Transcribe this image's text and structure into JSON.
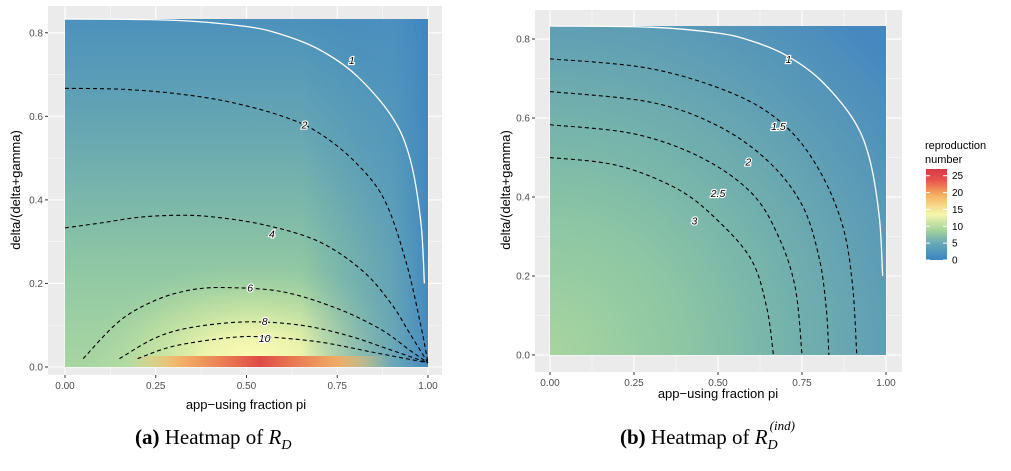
{
  "chart_data": [
    {
      "type": "heatmap",
      "panel": "a",
      "xlabel": "app−using fraction pi",
      "ylabel": "delta/(delta+gamma)",
      "xlim": [
        0,
        1
      ],
      "ylim": [
        0,
        0.833
      ],
      "x_ticks": [
        "0.00",
        "0.25",
        "0.50",
        "0.75",
        "1.00"
      ],
      "y_ticks": [
        "0.0",
        "0.2",
        "0.4",
        "0.6",
        "0.8"
      ],
      "contours": [
        {
          "level": "1",
          "style": "solid-white",
          "points": [
            [
              0.0,
              0.833
            ],
            [
              0.3,
              0.83
            ],
            [
              0.5,
              0.815
            ],
            [
              0.6,
              0.795
            ],
            [
              0.7,
              0.76
            ],
            [
              0.8,
              0.7
            ],
            [
              0.9,
              0.6
            ],
            [
              0.95,
              0.5
            ],
            [
              0.98,
              0.35
            ],
            [
              0.99,
              0.2
            ]
          ]
        },
        {
          "level": "2",
          "style": "dashed",
          "points": [
            [
              0.0,
              0.667
            ],
            [
              0.15,
              0.665
            ],
            [
              0.3,
              0.655
            ],
            [
              0.45,
              0.635
            ],
            [
              0.6,
              0.6
            ],
            [
              0.7,
              0.56
            ],
            [
              0.8,
              0.49
            ],
            [
              0.88,
              0.4
            ],
            [
              0.94,
              0.25
            ],
            [
              0.98,
              0.1
            ],
            [
              1.0,
              0.01
            ]
          ]
        },
        {
          "level": "4",
          "style": "dashed",
          "points": [
            [
              0.0,
              0.333
            ],
            [
              0.1,
              0.345
            ],
            [
              0.2,
              0.358
            ],
            [
              0.3,
              0.363
            ],
            [
              0.4,
              0.36
            ],
            [
              0.55,
              0.34
            ],
            [
              0.7,
              0.3
            ],
            [
              0.82,
              0.23
            ],
            [
              0.9,
              0.15
            ],
            [
              0.95,
              0.08
            ],
            [
              1.0,
              0.01
            ]
          ]
        },
        {
          "level": "6",
          "style": "dashed",
          "points": [
            [
              0.05,
              0.02
            ],
            [
              0.15,
              0.11
            ],
            [
              0.25,
              0.16
            ],
            [
              0.35,
              0.185
            ],
            [
              0.45,
              0.19
            ],
            [
              0.6,
              0.18
            ],
            [
              0.75,
              0.14
            ],
            [
              0.87,
              0.09
            ],
            [
              0.95,
              0.04
            ],
            [
              1.0,
              0.01
            ]
          ]
        },
        {
          "level": "8",
          "style": "dashed",
          "points": [
            [
              0.15,
              0.02
            ],
            [
              0.25,
              0.07
            ],
            [
              0.35,
              0.095
            ],
            [
              0.5,
              0.108
            ],
            [
              0.65,
              0.1
            ],
            [
              0.78,
              0.075
            ],
            [
              0.9,
              0.04
            ],
            [
              1.0,
              0.01
            ]
          ]
        },
        {
          "level": "10",
          "style": "dashed",
          "points": [
            [
              0.2,
              0.02
            ],
            [
              0.3,
              0.05
            ],
            [
              0.45,
              0.07
            ],
            [
              0.55,
              0.072
            ],
            [
              0.7,
              0.06
            ],
            [
              0.85,
              0.035
            ],
            [
              1.0,
              0.01
            ]
          ]
        }
      ],
      "contour_label_positions": [
        {
          "text": "1",
          "x": 0.79,
          "y": 0.735
        },
        {
          "text": "2",
          "x": 0.66,
          "y": 0.58
        },
        {
          "text": "4",
          "x": 0.57,
          "y": 0.32
        },
        {
          "text": "6",
          "x": 0.51,
          "y": 0.19
        },
        {
          "text": "8",
          "x": 0.55,
          "y": 0.11
        },
        {
          "text": "10",
          "x": 0.55,
          "y": 0.07
        }
      ]
    },
    {
      "type": "heatmap",
      "panel": "b",
      "xlabel": "app−using fraction pi",
      "ylabel": "delta/(delta+gamma)",
      "xlim": [
        0,
        1
      ],
      "ylim": [
        0,
        0.833
      ],
      "x_ticks": [
        "0.00",
        "0.25",
        "0.50",
        "0.75",
        "1.00"
      ],
      "y_ticks": [
        "0.0",
        "0.2",
        "0.4",
        "0.6",
        "0.8"
      ],
      "contours": [
        {
          "level": "1",
          "style": "solid-white",
          "points": [
            [
              0.0,
              0.833
            ],
            [
              0.3,
              0.83
            ],
            [
              0.5,
              0.815
            ],
            [
              0.6,
              0.795
            ],
            [
              0.7,
              0.76
            ],
            [
              0.8,
              0.7
            ],
            [
              0.9,
              0.6
            ],
            [
              0.95,
              0.5
            ],
            [
              0.98,
              0.35
            ],
            [
              0.99,
              0.2
            ]
          ]
        },
        {
          "level": "1.5",
          "style": "dashed",
          "points": [
            [
              0.0,
              0.75
            ],
            [
              0.3,
              0.725
            ],
            [
              0.55,
              0.66
            ],
            [
              0.7,
              0.58
            ],
            [
              0.8,
              0.47
            ],
            [
              0.87,
              0.33
            ],
            [
              0.9,
              0.18
            ],
            [
              0.913,
              0.0
            ]
          ]
        },
        {
          "level": "2",
          "style": "dashed",
          "points": [
            [
              0.0,
              0.667
            ],
            [
              0.3,
              0.64
            ],
            [
              0.5,
              0.58
            ],
            [
              0.65,
              0.49
            ],
            [
              0.75,
              0.38
            ],
            [
              0.8,
              0.25
            ],
            [
              0.822,
              0.12
            ],
            [
              0.83,
              0.0
            ]
          ]
        },
        {
          "level": "2.5",
          "style": "dashed",
          "points": [
            [
              0.0,
              0.583
            ],
            [
              0.25,
              0.56
            ],
            [
              0.45,
              0.5
            ],
            [
              0.6,
              0.41
            ],
            [
              0.68,
              0.3
            ],
            [
              0.73,
              0.17
            ],
            [
              0.75,
              0.0
            ]
          ]
        },
        {
          "level": "3",
          "style": "dashed",
          "points": [
            [
              0.0,
              0.5
            ],
            [
              0.2,
              0.48
            ],
            [
              0.38,
              0.42
            ],
            [
              0.5,
              0.34
            ],
            [
              0.6,
              0.24
            ],
            [
              0.645,
              0.12
            ],
            [
              0.665,
              0.0
            ]
          ]
        }
      ],
      "contour_label_positions": [
        {
          "text": "1",
          "x": 0.71,
          "y": 0.75
        },
        {
          "text": "1.5",
          "x": 0.68,
          "y": 0.58
        },
        {
          "text": "2",
          "x": 0.59,
          "y": 0.49
        },
        {
          "text": "2.5",
          "x": 0.5,
          "y": 0.41
        },
        {
          "text": "3",
          "x": 0.43,
          "y": 0.34
        }
      ]
    }
  ],
  "legend": {
    "title_line1": "reproduction",
    "title_line2": "number",
    "ticks": [
      "25",
      "20",
      "15",
      "10",
      "5",
      "0"
    ],
    "tick_values": [
      25,
      20,
      15,
      10,
      5,
      0
    ],
    "max": 27,
    "colors": [
      "#3a85c2",
      "#66a8b8",
      "#a7d39b",
      "#f5f6ad",
      "#f6b765",
      "#e9534b",
      "#d63a47"
    ]
  },
  "captions": {
    "a_label": "(a)",
    "a_text": "Heatmap of",
    "a_symbol": "R",
    "a_sub": "D",
    "b_label": "(b)",
    "b_text": "Heatmap of",
    "b_symbol": "R",
    "b_sub": "D",
    "b_sup": "(ind)"
  }
}
